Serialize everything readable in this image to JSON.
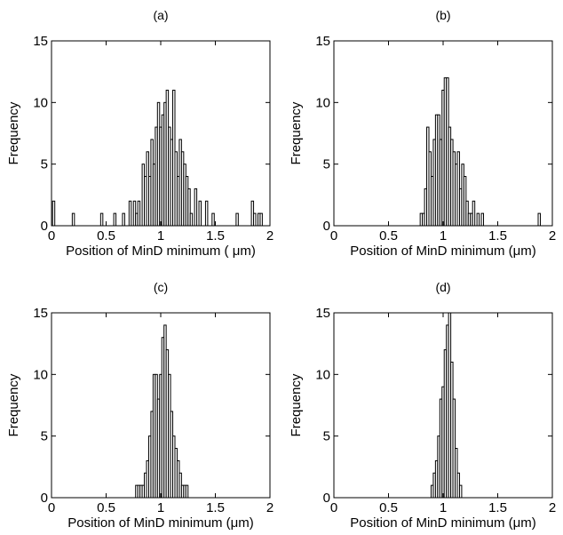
{
  "chart_data": [
    {
      "type": "bar",
      "title": "(a)",
      "xlabel": "Position of MinD minimum ( μm)",
      "ylabel": "Frequency",
      "xlim": [
        0,
        2
      ],
      "ylim": [
        0,
        15
      ],
      "xticks": [
        "0",
        "0.5",
        "1",
        "1.5",
        "2"
      ],
      "yticks": [
        "0",
        "5",
        "10",
        "15"
      ],
      "bin_width": 0.02,
      "grid": false,
      "bins": [
        {
          "x": 0.02,
          "y": 2
        },
        {
          "x": 0.2,
          "y": 1
        },
        {
          "x": 0.46,
          "y": 1
        },
        {
          "x": 0.58,
          "y": 1
        },
        {
          "x": 0.66,
          "y": 1
        },
        {
          "x": 0.72,
          "y": 2
        },
        {
          "x": 0.76,
          "y": 2
        },
        {
          "x": 0.78,
          "y": 1
        },
        {
          "x": 0.8,
          "y": 2
        },
        {
          "x": 0.84,
          "y": 5
        },
        {
          "x": 0.86,
          "y": 4
        },
        {
          "x": 0.88,
          "y": 6
        },
        {
          "x": 0.9,
          "y": 4
        },
        {
          "x": 0.92,
          "y": 7
        },
        {
          "x": 0.94,
          "y": 5
        },
        {
          "x": 0.96,
          "y": 8
        },
        {
          "x": 0.98,
          "y": 10
        },
        {
          "x": 1.0,
          "y": 8
        },
        {
          "x": 1.02,
          "y": 9
        },
        {
          "x": 1.04,
          "y": 10
        },
        {
          "x": 1.06,
          "y": 11
        },
        {
          "x": 1.08,
          "y": 8
        },
        {
          "x": 1.1,
          "y": 7
        },
        {
          "x": 1.12,
          "y": 11
        },
        {
          "x": 1.14,
          "y": 6
        },
        {
          "x": 1.16,
          "y": 4
        },
        {
          "x": 1.18,
          "y": 7
        },
        {
          "x": 1.2,
          "y": 6
        },
        {
          "x": 1.22,
          "y": 5
        },
        {
          "x": 1.24,
          "y": 4
        },
        {
          "x": 1.26,
          "y": 3
        },
        {
          "x": 1.28,
          "y": 1
        },
        {
          "x": 1.32,
          "y": 3
        },
        {
          "x": 1.36,
          "y": 2
        },
        {
          "x": 1.42,
          "y": 2
        },
        {
          "x": 1.48,
          "y": 1
        },
        {
          "x": 1.7,
          "y": 1
        },
        {
          "x": 1.84,
          "y": 2
        },
        {
          "x": 1.86,
          "y": 1
        },
        {
          "x": 1.9,
          "y": 1
        },
        {
          "x": 1.92,
          "y": 1
        }
      ]
    },
    {
      "type": "bar",
      "title": "(b)",
      "xlabel": "Position of MinD minimum (μm)",
      "ylabel": "Frequency",
      "xlim": [
        0,
        2
      ],
      "ylim": [
        0,
        15
      ],
      "xticks": [
        "0",
        "0.5",
        "1",
        "1.5",
        "2"
      ],
      "yticks": [
        "0",
        "5",
        "10",
        "15"
      ],
      "bin_width": 0.02,
      "grid": false,
      "bins": [
        {
          "x": 0.8,
          "y": 1
        },
        {
          "x": 0.82,
          "y": 1
        },
        {
          "x": 0.84,
          "y": 3
        },
        {
          "x": 0.86,
          "y": 8
        },
        {
          "x": 0.88,
          "y": 6
        },
        {
          "x": 0.9,
          "y": 4
        },
        {
          "x": 0.92,
          "y": 7
        },
        {
          "x": 0.94,
          "y": 9
        },
        {
          "x": 0.96,
          "y": 9
        },
        {
          "x": 0.98,
          "y": 7
        },
        {
          "x": 1.0,
          "y": 11
        },
        {
          "x": 1.02,
          "y": 12
        },
        {
          "x": 1.04,
          "y": 12
        },
        {
          "x": 1.06,
          "y": 8
        },
        {
          "x": 1.08,
          "y": 7
        },
        {
          "x": 1.1,
          "y": 6
        },
        {
          "x": 1.12,
          "y": 5
        },
        {
          "x": 1.14,
          "y": 6
        },
        {
          "x": 1.16,
          "y": 3
        },
        {
          "x": 1.18,
          "y": 5
        },
        {
          "x": 1.2,
          "y": 4
        },
        {
          "x": 1.22,
          "y": 2
        },
        {
          "x": 1.24,
          "y": 1
        },
        {
          "x": 1.26,
          "y": 1
        },
        {
          "x": 1.28,
          "y": 2
        },
        {
          "x": 1.32,
          "y": 1
        },
        {
          "x": 1.36,
          "y": 1
        },
        {
          "x": 1.88,
          "y": 1
        }
      ]
    },
    {
      "type": "bar",
      "title": "(c)",
      "xlabel": "Position of MinD minimum (μm)",
      "ylabel": "Frequency",
      "xlim": [
        0,
        2
      ],
      "ylim": [
        0,
        15
      ],
      "xticks": [
        "0",
        "0.5",
        "1",
        "1.5",
        "2"
      ],
      "yticks": [
        "0",
        "5",
        "10",
        "15"
      ],
      "bin_width": 0.02,
      "grid": false,
      "bins": [
        {
          "x": 0.78,
          "y": 1
        },
        {
          "x": 0.8,
          "y": 1
        },
        {
          "x": 0.82,
          "y": 1
        },
        {
          "x": 0.84,
          "y": 1
        },
        {
          "x": 0.86,
          "y": 2
        },
        {
          "x": 0.88,
          "y": 3
        },
        {
          "x": 0.9,
          "y": 5
        },
        {
          "x": 0.92,
          "y": 7
        },
        {
          "x": 0.94,
          "y": 10
        },
        {
          "x": 0.96,
          "y": 10
        },
        {
          "x": 0.98,
          "y": 8
        },
        {
          "x": 1.0,
          "y": 10
        },
        {
          "x": 1.02,
          "y": 13
        },
        {
          "x": 1.04,
          "y": 14
        },
        {
          "x": 1.06,
          "y": 12
        },
        {
          "x": 1.08,
          "y": 10
        },
        {
          "x": 1.1,
          "y": 7
        },
        {
          "x": 1.12,
          "y": 5
        },
        {
          "x": 1.14,
          "y": 4
        },
        {
          "x": 1.16,
          "y": 3
        },
        {
          "x": 1.18,
          "y": 2
        },
        {
          "x": 1.2,
          "y": 1
        },
        {
          "x": 1.22,
          "y": 1
        },
        {
          "x": 1.24,
          "y": 1
        }
      ]
    },
    {
      "type": "bar",
      "title": "(d)",
      "xlabel": "Position of MinD minimum (μm)",
      "ylabel": "Frequency",
      "xlim": [
        0,
        2
      ],
      "ylim": [
        0,
        15
      ],
      "xticks": [
        "0",
        "0.5",
        "1",
        "1.5",
        "2"
      ],
      "yticks": [
        "0",
        "5",
        "10",
        "15"
      ],
      "bin_width": 0.02,
      "grid": false,
      "bins": [
        {
          "x": 0.9,
          "y": 1
        },
        {
          "x": 0.92,
          "y": 2
        },
        {
          "x": 0.94,
          "y": 3
        },
        {
          "x": 0.96,
          "y": 5
        },
        {
          "x": 0.98,
          "y": 8
        },
        {
          "x": 1.0,
          "y": 9
        },
        {
          "x": 1.02,
          "y": 12
        },
        {
          "x": 1.04,
          "y": 14
        },
        {
          "x": 1.06,
          "y": 15
        },
        {
          "x": 1.08,
          "y": 11
        },
        {
          "x": 1.1,
          "y": 8
        },
        {
          "x": 1.12,
          "y": 4
        },
        {
          "x": 1.14,
          "y": 2
        },
        {
          "x": 1.16,
          "y": 1
        }
      ]
    }
  ]
}
